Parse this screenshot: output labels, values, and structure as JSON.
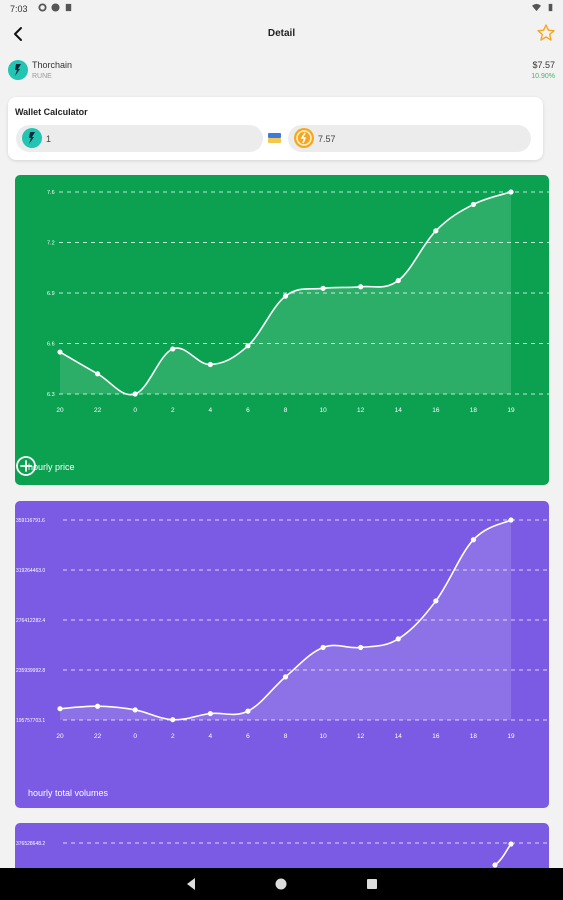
{
  "status_bar": {
    "time": "7:03"
  },
  "app_bar": {
    "title": "Detail"
  },
  "coin": {
    "name": "Thorchain",
    "symbol": "RUNE",
    "price": "$7.57",
    "change": "10.90%",
    "change_color": "#3fb56a"
  },
  "wallet_calculator": {
    "title": "Wallet Calculator",
    "from_value": "1",
    "to_value": "7.57"
  },
  "charts": {
    "hourly_price_label": "hourly price",
    "hourly_volume_label": "hourly total volumes"
  },
  "colors": {
    "price_card": "#0ba150",
    "volume_card": "#7b5ae4",
    "favorite_star": "#f5a623"
  },
  "icons": {
    "back": "arrow-left-icon",
    "favorite": "star-outline-icon",
    "add": "plus-circle-icon"
  },
  "chart_data": [
    {
      "type": "area",
      "x": [
        "20",
        "22",
        "0",
        "2",
        "4",
        "6",
        "8",
        "10",
        "12",
        "14",
        "16",
        "18",
        "19"
      ],
      "yticks": [
        "6.3",
        "6.6",
        "6.9",
        "7.2",
        "7.6"
      ],
      "ylim": [
        6.3,
        7.6
      ],
      "grid": true,
      "series": [
        {
          "values": [
            6.57,
            6.43,
            6.3,
            6.59,
            6.49,
            6.61,
            6.93,
            6.98,
            6.99,
            7.03,
            7.35,
            7.52,
            7.6
          ]
        }
      ]
    },
    {
      "type": "area",
      "x": [
        "20",
        "22",
        "0",
        "2",
        "4",
        "6",
        "8",
        "10",
        "12",
        "14",
        "16",
        "18",
        "19"
      ],
      "yticks": [
        "195757703.1",
        "235939992.8",
        "276412282.4",
        "319264463.0",
        "359116791.6"
      ],
      "ylim": [
        195757703.1,
        359116791.6
      ],
      "grid": true,
      "series": [
        {
          "values": [
            205000000,
            207000000,
            204000000,
            196000000,
            201000000,
            203000000,
            231000000,
            255000000,
            255000000,
            262000000,
            293000000,
            343000000,
            359116791.6
          ]
        }
      ]
    },
    {
      "type": "area",
      "yticks": [
        "376528648.2"
      ],
      "grid": true
    }
  ]
}
